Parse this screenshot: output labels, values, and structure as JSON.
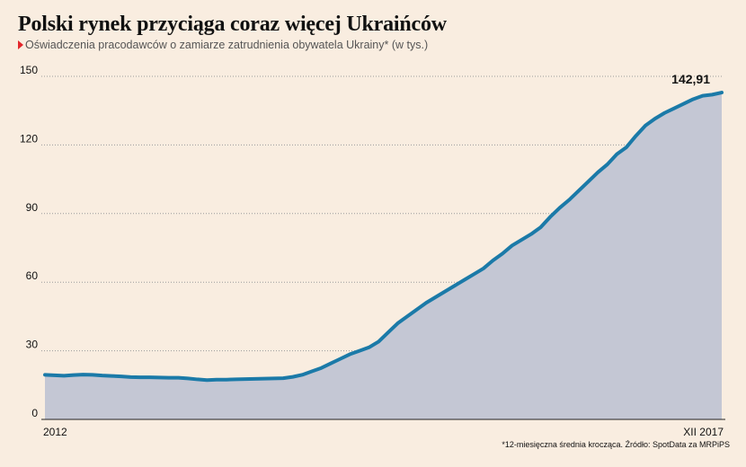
{
  "header": {
    "title": "Polski rynek przyciąga coraz więcej Ukraińców",
    "subtitle": "Oświadczenia pracodawców o zamiarze zatrudnienia obywatela Ukrainy* (w tys.)"
  },
  "footnote": "*12-miesięczna średnia krocząca. Źródło: SpotData za MRPiPS",
  "colors": {
    "line": "#1b7aa8",
    "fill": "#c4c7d4",
    "background": "#f9ede0",
    "marker": "#e3262b"
  },
  "icons": {
    "subtitle_marker": "red-triangle-icon"
  },
  "chart_data": {
    "type": "area",
    "title": "Polski rynek przyciąga coraz więcej Ukraińców",
    "subtitle": "Oświadczenia pracodawców o zamiarze zatrudnienia obywatela Ukrainy* (w tys.)",
    "ylim": [
      0,
      150
    ],
    "yticks": [
      0,
      30,
      60,
      90,
      120,
      150
    ],
    "x_labels": [
      "2012",
      "XII 2017"
    ],
    "x_start": "2012-01",
    "x_end": "2017-12",
    "grid": "horizontal-dotted",
    "annotation": {
      "label": "142,91",
      "value": 142.91
    },
    "values": [
      19.5,
      19.3,
      19.1,
      19.4,
      19.6,
      19.5,
      19.2,
      19.0,
      18.8,
      18.5,
      18.4,
      18.4,
      18.3,
      18.2,
      18.2,
      17.9,
      17.5,
      17.2,
      17.4,
      17.4,
      17.5,
      17.6,
      17.7,
      17.8,
      17.9,
      18.0,
      18.6,
      19.5,
      21.0,
      22.5,
      24.5,
      26.5,
      28.5,
      30.0,
      31.5,
      34.0,
      38.0,
      42.0,
      45.0,
      48.0,
      51.0,
      53.5,
      56.0,
      58.5,
      61.0,
      63.5,
      66.0,
      69.5,
      72.5,
      76.0,
      78.5,
      81.0,
      84.0,
      88.5,
      92.5,
      96.0,
      100.0,
      104.0,
      108.0,
      111.5,
      116.0,
      119.0,
      124.0,
      128.5,
      131.5,
      134.0,
      136.0,
      138.0,
      140.0,
      141.5,
      142.0,
      142.91
    ]
  }
}
